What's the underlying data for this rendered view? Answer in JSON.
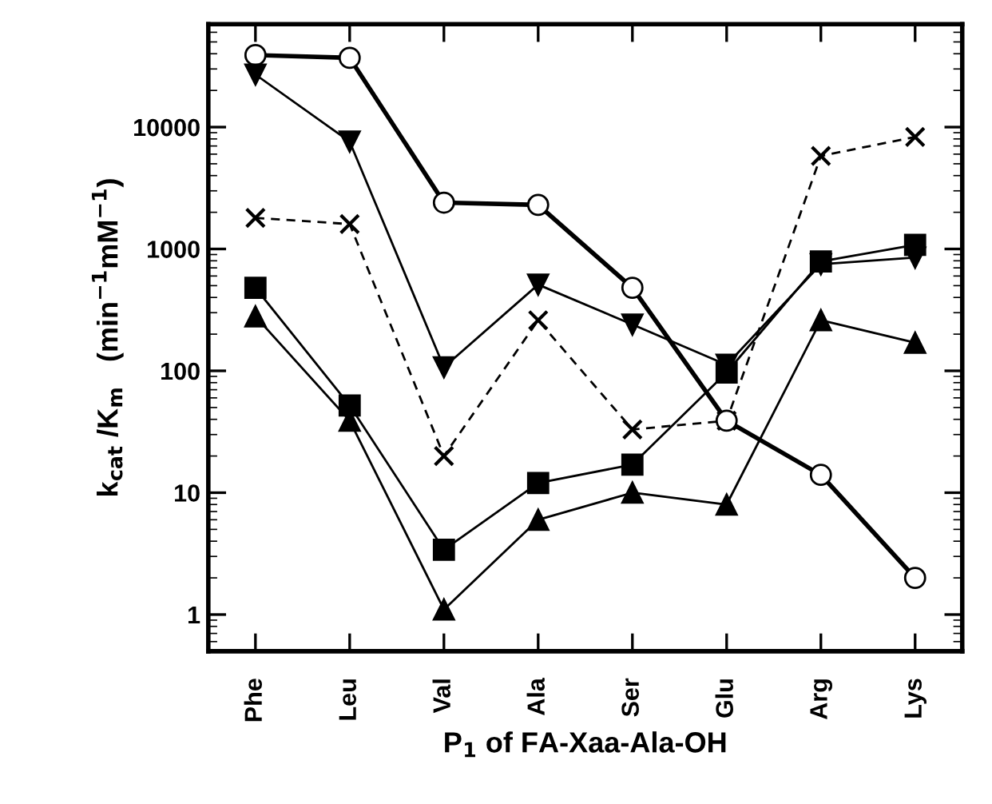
{
  "chart_data": {
    "type": "line",
    "xlabel": "P$_{1}$ of FA-Xaa-Ala-OH",
    "ylabel": "k$_{cat}$ /K$_{m}$   (min$^{−1}$mM$^{−1}$)",
    "categories": [
      "Phe",
      "Leu",
      "Val",
      "Ala",
      "Ser",
      "Glu",
      "Arg",
      "Lys"
    ],
    "log": true,
    "ylim": [
      0.5,
      70000
    ],
    "yticks": [
      1,
      10,
      100,
      1000,
      10000
    ],
    "grid": false,
    "legend": false,
    "series": [
      {
        "color": "#000000",
        "marker": "circle",
        "line_style": "solid",
        "values": [
          39000,
          37000,
          2400,
          2300,
          480,
          39,
          14,
          2
        ]
      },
      {
        "color": "#000000",
        "marker": "triangle_down",
        "line_style": "solid",
        "values": [
          27000,
          7600,
          107,
          510,
          240,
          112,
          750,
          850
        ]
      },
      {
        "color": "#000000",
        "marker": "cross",
        "line_style": "dashed",
        "values": [
          1800,
          1600,
          20,
          260,
          33,
          39,
          5800,
          8300
        ]
      },
      {
        "color": "#000000",
        "marker": "square",
        "line_style": "solid",
        "values": [
          480,
          52,
          3.4,
          12,
          17,
          97,
          790,
          1080
        ]
      },
      {
        "color": "#000000",
        "marker": "triangle",
        "line_style": "solid",
        "values": [
          280,
          39,
          1.1,
          6,
          10,
          8,
          260,
          170
        ]
      }
    ]
  }
}
